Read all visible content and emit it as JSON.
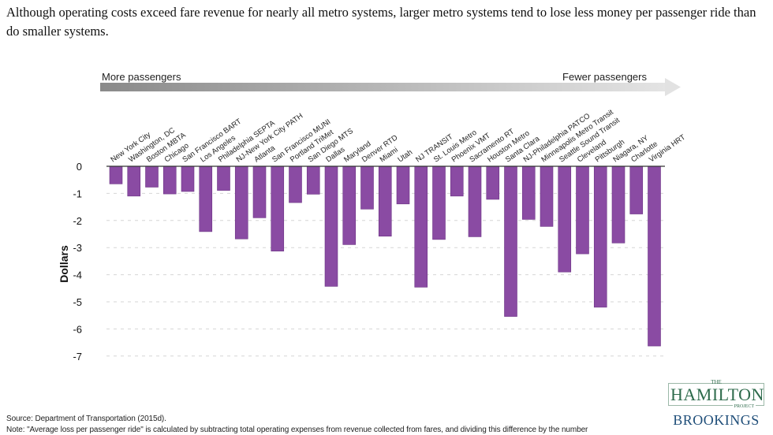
{
  "title": "Although operating costs exceed fare revenue for nearly all metro systems, larger metro systems tend to lose less money per passenger ride than do smaller systems.",
  "source": "Source: Department of Transportation (2015d).",
  "note": "Note:  \"Average loss per passenger ride\" is calculated by subtracting total operating expenses from revenue collected from fares, and dividing this difference by the number",
  "logo": {
    "the": "THE",
    "hamilton": "HAMILTON",
    "project": "PROJECT",
    "brookings": "BROOKINGS"
  },
  "colors": {
    "bar": "#8a4ba3",
    "accent_green": "#2e6b4c",
    "brookings_blue": "#1f4e79"
  },
  "chart_data": {
    "type": "bar",
    "ylabel": "Dollars",
    "ylim": [
      -7,
      0
    ],
    "yticks": [
      0,
      -1,
      -2,
      -3,
      -4,
      -5,
      -6,
      -7
    ],
    "grid": true,
    "arrow_left_label": "More passengers",
    "arrow_right_label": "Fewer passengers",
    "categories": [
      "New York City",
      "Washington, DC",
      "Boston MBTA",
      "Chicago",
      "San Francisco BART",
      "Los Angeles",
      "Philadelphia SEPTA",
      "NJ-New York City PATH",
      "Atlanta",
      "San Francisco MUNI",
      "Portland TriMet",
      "San Diego MTS",
      "Dallas",
      "Maryland",
      "Denver RTD",
      "Miami",
      "Utah",
      "NJ TRANSIT",
      "St. Louis Metro",
      "Phoenix VMT",
      "Sacramento RT",
      "Houston Metro",
      "Santa Clara",
      "NJ-Philadelphia PATCO",
      "Minneapolis Metro Transit",
      "Seattle Sound Transit",
      "Cleveland",
      "Pittsburgh",
      "Niagara, NY",
      "Charlotte",
      "Virginia HRT"
    ],
    "values": [
      -0.65,
      -1.1,
      -0.77,
      -1.02,
      -0.93,
      -2.41,
      -0.89,
      -2.68,
      -1.9,
      -3.13,
      -1.34,
      -1.03,
      -4.43,
      -2.89,
      -1.58,
      -2.58,
      -1.39,
      -4.46,
      -2.7,
      -1.1,
      -2.6,
      -1.22,
      -5.54,
      -1.96,
      -2.22,
      -3.9,
      -3.23,
      -5.2,
      -2.83,
      -1.76,
      -6.63
    ]
  }
}
